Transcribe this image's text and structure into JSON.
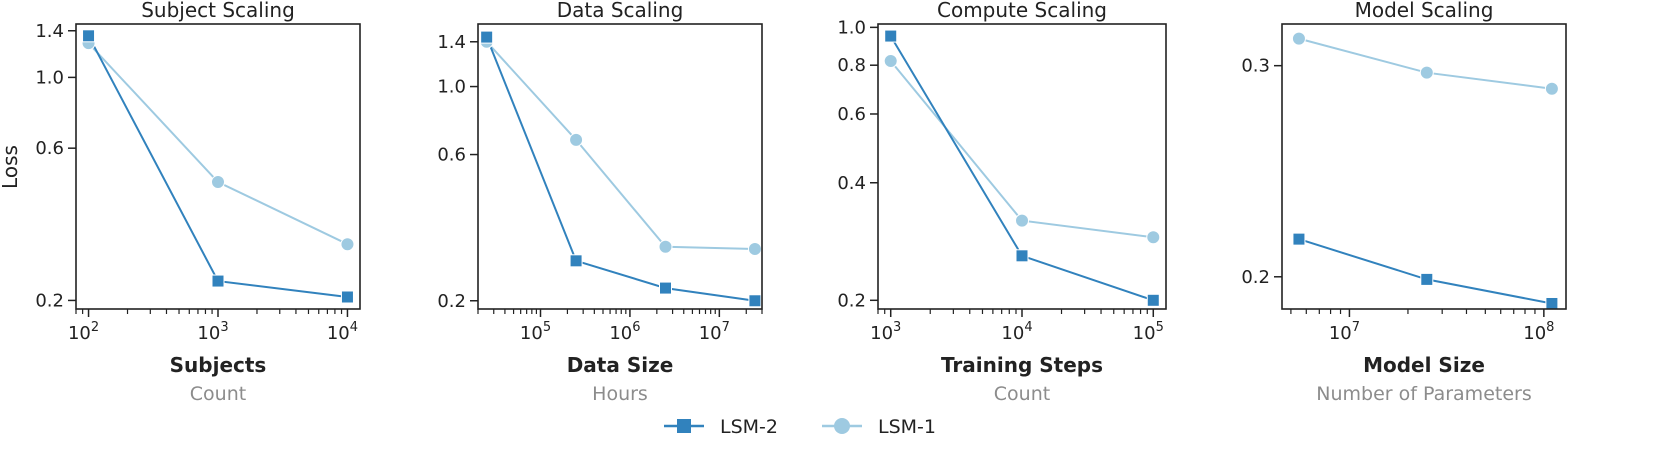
{
  "figure": {
    "ylabel": "Loss",
    "colors": {
      "lsm2": "#3182bd",
      "lsm1": "#9ecae1",
      "axis": "#222222",
      "sublabel": "#8c8c8c"
    },
    "legend": {
      "position": "bottom-center",
      "items": [
        {
          "label": "LSM-2",
          "marker": "square",
          "color": "#3182bd"
        },
        {
          "label": "LSM-1",
          "marker": "circle",
          "color": "#9ecae1"
        }
      ]
    }
  },
  "chart_data": [
    {
      "type": "line",
      "title": "Subject Scaling",
      "xlabel": "Subjects",
      "xsublabel": "Count",
      "ylabel": "Loss",
      "xscale": "log",
      "yscale": "log",
      "xlim": [
        80,
        12500
      ],
      "ylim": [
        0.188,
        1.47
      ],
      "xticks": [
        {
          "value": 100,
          "base": "10",
          "exp": "2"
        },
        {
          "value": 1000,
          "base": "10",
          "exp": "3"
        },
        {
          "value": 10000,
          "base": "10",
          "exp": "4"
        }
      ],
      "yticks": [
        {
          "value": 0.2,
          "label": "0.2"
        },
        {
          "value": 0.6,
          "label": "0.6"
        },
        {
          "value": 1.0,
          "label": "1.0"
        },
        {
          "value": 1.4,
          "label": "1.4"
        }
      ],
      "grid": false,
      "series": [
        {
          "name": "LSM-1",
          "marker": "circle",
          "color": "#9ecae1",
          "x": [
            100,
            1000,
            10000
          ],
          "y": [
            1.28,
            0.47,
            0.3
          ]
        },
        {
          "name": "LSM-2",
          "marker": "square",
          "color": "#3182bd",
          "x": [
            100,
            1000,
            10000
          ],
          "y": [
            1.35,
            0.23,
            0.205
          ]
        }
      ]
    },
    {
      "type": "line",
      "title": "Data Scaling",
      "xlabel": "Data Size",
      "xsublabel": "Hours",
      "ylabel": "",
      "xscale": "log",
      "yscale": "log",
      "xlim": [
        20000,
        30000000
      ],
      "ylim": [
        0.188,
        1.6
      ],
      "xticks": [
        {
          "value": 100000,
          "base": "10",
          "exp": "5"
        },
        {
          "value": 1000000,
          "base": "10",
          "exp": "6"
        },
        {
          "value": 10000000,
          "base": "10",
          "exp": "7"
        }
      ],
      "yticks": [
        {
          "value": 0.2,
          "label": "0.2"
        },
        {
          "value": 0.6,
          "label": "0.6"
        },
        {
          "value": 1.0,
          "label": "1.0"
        },
        {
          "value": 1.4,
          "label": "1.4"
        }
      ],
      "grid": false,
      "series": [
        {
          "name": "LSM-1",
          "marker": "circle",
          "color": "#9ecae1",
          "x": [
            25000,
            250000,
            2500000,
            25000000
          ],
          "y": [
            1.4,
            0.67,
            0.3,
            0.295
          ]
        },
        {
          "name": "LSM-2",
          "marker": "square",
          "color": "#3182bd",
          "x": [
            25000,
            250000,
            2500000,
            25000000
          ],
          "y": [
            1.45,
            0.27,
            0.22,
            0.2
          ]
        }
      ]
    },
    {
      "type": "line",
      "title": "Compute Scaling",
      "xlabel": "Training Steps",
      "xsublabel": "Count",
      "ylabel": "",
      "xscale": "log",
      "yscale": "log",
      "xlim": [
        800,
        125000
      ],
      "ylim": [
        0.19,
        1.02
      ],
      "xticks": [
        {
          "value": 1000,
          "base": "10",
          "exp": "3"
        },
        {
          "value": 10000,
          "base": "10",
          "exp": "4"
        },
        {
          "value": 100000,
          "base": "10",
          "exp": "5"
        }
      ],
      "yticks": [
        {
          "value": 0.2,
          "label": "0.2"
        },
        {
          "value": 0.4,
          "label": "0.4"
        },
        {
          "value": 0.6,
          "label": "0.6"
        },
        {
          "value": 0.8,
          "label": "0.8"
        },
        {
          "value": 1.0,
          "label": "1.0"
        }
      ],
      "grid": false,
      "series": [
        {
          "name": "LSM-1",
          "marker": "circle",
          "color": "#9ecae1",
          "x": [
            1000,
            10000,
            100000
          ],
          "y": [
            0.82,
            0.32,
            0.29
          ]
        },
        {
          "name": "LSM-2",
          "marker": "square",
          "color": "#3182bd",
          "x": [
            1000,
            10000,
            100000
          ],
          "y": [
            0.95,
            0.26,
            0.2
          ]
        }
      ]
    },
    {
      "type": "line",
      "title": "Model Scaling",
      "xlabel": "Model Size",
      "xsublabel": "Number of Parameters",
      "ylabel": "",
      "xscale": "log",
      "yscale": "log",
      "xlim": [
        4500000,
        130000000
      ],
      "ylim": [
        0.188,
        0.325
      ],
      "xticks": [
        {
          "value": 10000000,
          "base": "10",
          "exp": "7"
        },
        {
          "value": 100000000,
          "base": "10",
          "exp": "8"
        }
      ],
      "yticks": [
        {
          "value": 0.2,
          "label": "0.2"
        },
        {
          "value": 0.3,
          "label": "0.3"
        }
      ],
      "grid": false,
      "series": [
        {
          "name": "LSM-1",
          "marker": "circle",
          "color": "#9ecae1",
          "x": [
            5500000,
            25000000,
            110000000
          ],
          "y": [
            0.316,
            0.296,
            0.287
          ]
        },
        {
          "name": "LSM-2",
          "marker": "square",
          "color": "#3182bd",
          "x": [
            5500000,
            25000000,
            110000000
          ],
          "y": [
            0.215,
            0.199,
            0.19
          ]
        }
      ]
    }
  ]
}
